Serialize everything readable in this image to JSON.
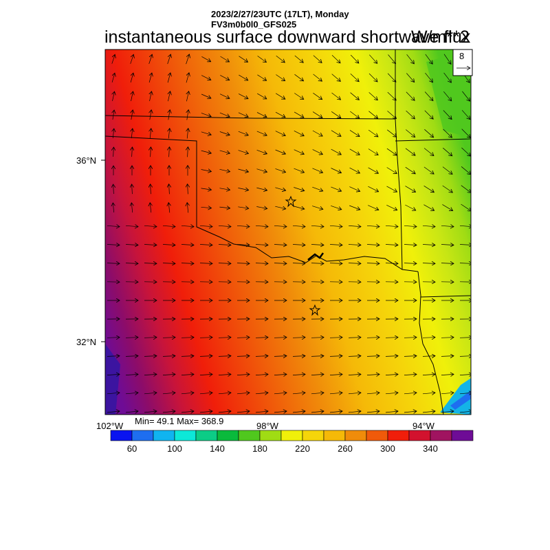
{
  "header": {
    "line1": "2023/2/27/23UTC (17LT), Monday",
    "line2": "FV3m0b0l0_GFS025",
    "title": "instantaneous surface downward shortwave flux",
    "units": "W/m**2"
  },
  "map": {
    "lat_labels": [
      "36°N",
      "32°N"
    ],
    "lon_labels": [
      "102°W",
      "98°W",
      "94°W"
    ],
    "vector_ref_label": "8",
    "markers": [
      "star",
      "star"
    ]
  },
  "stats": {
    "min_max": "Min= 49.1 Max= 368.9"
  },
  "colorbar": {
    "colors": [
      "#0a14f0",
      "#1e6ef0",
      "#10b4f0",
      "#0de8d8",
      "#0ccc86",
      "#0aba3c",
      "#50c81e",
      "#a0dc14",
      "#f0f00a",
      "#f5d50a",
      "#f5b908",
      "#f08c0a",
      "#f05a0a",
      "#f01e0a",
      "#d2122e",
      "#a01460",
      "#6e0c96"
    ],
    "tick_labels": [
      "60",
      "100",
      "140",
      "180",
      "220",
      "260",
      "300",
      "340"
    ]
  }
}
